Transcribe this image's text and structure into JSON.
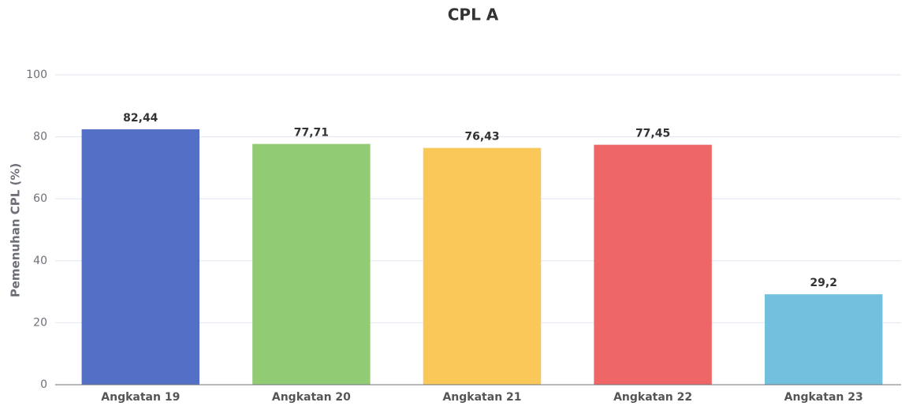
{
  "chart_data": {
    "type": "bar",
    "title": "CPL A",
    "y_label": "Pemenuhan CPL (%)",
    "categories": [
      "Angkatan 19",
      "Angkatan 20",
      "Angkatan 21",
      "Angkatan 22",
      "Angkatan 23"
    ],
    "values": [
      82.44,
      77.71,
      76.43,
      77.45,
      29.2
    ],
    "value_labels": [
      "82,44",
      "77,71",
      "76,43",
      "77,45",
      "29,2"
    ],
    "colors": [
      "#5470c6",
      "#91cc75",
      "#fac858",
      "#ee6666",
      "#73c0de"
    ],
    "ylim": [
      0,
      100
    ],
    "yticks": [
      0,
      20,
      40,
      60,
      80,
      100
    ],
    "grid": true
  }
}
